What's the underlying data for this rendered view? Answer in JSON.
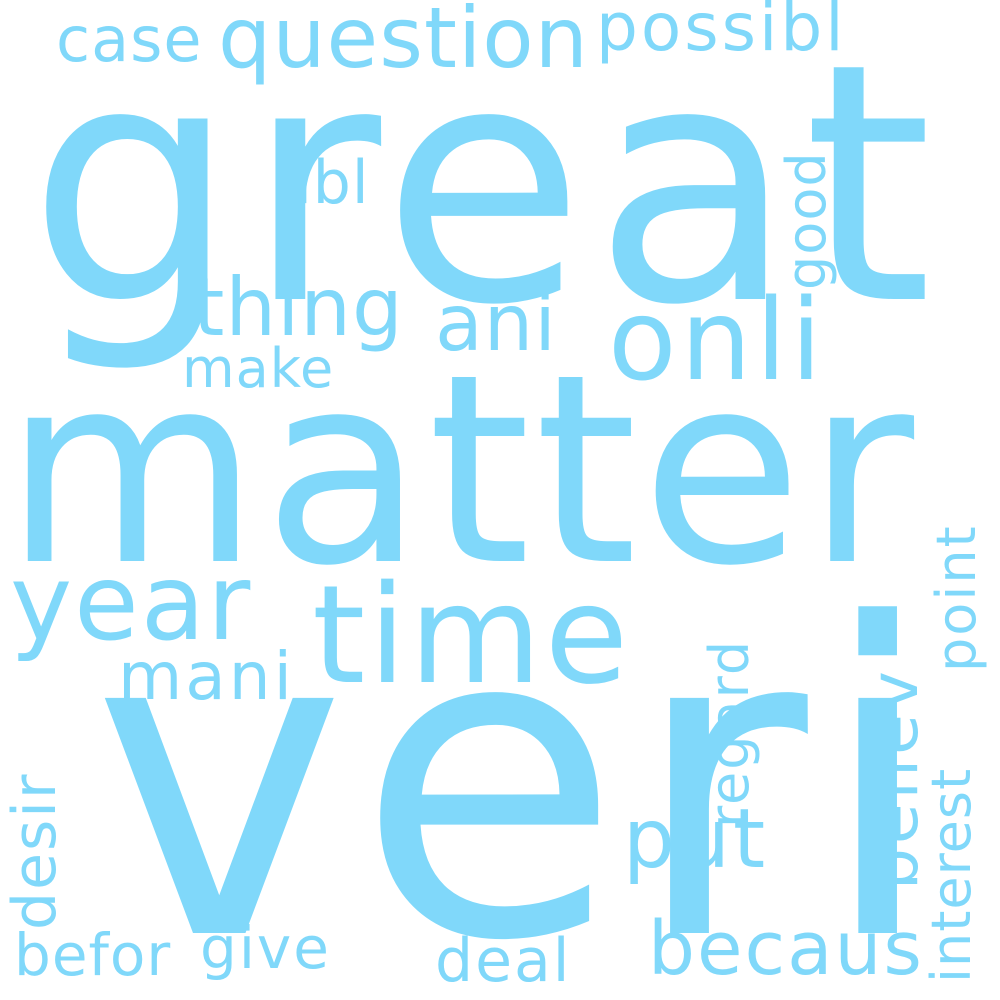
{
  "word_cloud": {
    "color": "#80d8fa",
    "background": "#ffffff",
    "words": {
      "great": "great",
      "matter": "matter",
      "veri": "veri",
      "time": "time",
      "year": "year",
      "onli": "onli",
      "thing": "thing",
      "ani": "ani",
      "question": "question",
      "possibl": "possibl",
      "case": "case",
      "abl": "abl",
      "good": "good",
      "make": "make",
      "mani": "mani",
      "believ": "believ",
      "regard": "regard",
      "point": "point",
      "interest": "interest",
      "desir": "desir",
      "put": "put",
      "becaus": "becaus",
      "deal": "deal",
      "give": "give",
      "befor": "befor"
    }
  }
}
